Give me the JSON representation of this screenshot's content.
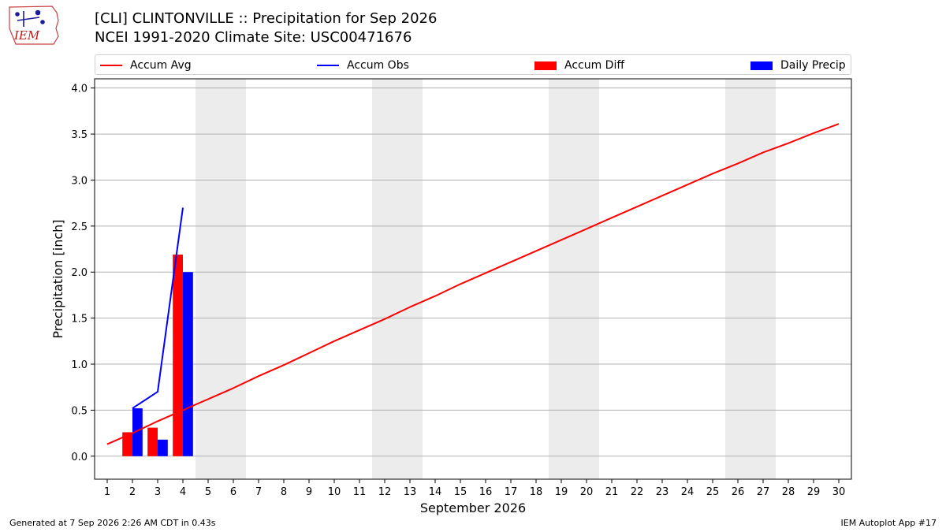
{
  "header": {
    "logo_text": "IEM",
    "title_line1": "[CLI] CLINTONVILLE :: Precipitation for Sep 2026",
    "title_line2": "NCEI 1991-2020 Climate Site: USC00471676"
  },
  "legend": {
    "items": [
      {
        "label": "Accum Avg",
        "kind": "line",
        "color": "#ff0000"
      },
      {
        "label": "Accum Obs",
        "kind": "line",
        "color": "#0000ff"
      },
      {
        "label": "Accum Diff",
        "kind": "patch",
        "color": "#ff0000"
      },
      {
        "label": "Daily Precip",
        "kind": "patch",
        "color": "#0000ff"
      }
    ]
  },
  "chart_data": {
    "type": "bar",
    "xlabel": "September 2026",
    "ylabel": "Precipitation [inch]",
    "xlim": [
      0.5,
      30.5
    ],
    "ylim": [
      -0.25,
      4.1
    ],
    "grid": "horizontal",
    "legend_position": "top",
    "x_ticks": [
      1,
      2,
      3,
      4,
      5,
      6,
      7,
      8,
      9,
      10,
      11,
      12,
      13,
      14,
      15,
      16,
      17,
      18,
      19,
      20,
      21,
      22,
      23,
      24,
      25,
      26,
      27,
      28,
      29,
      30
    ],
    "y_ticks": [
      0.0,
      0.5,
      1.0,
      1.5,
      2.0,
      2.5,
      3.0,
      3.5,
      4.0
    ],
    "weekend_shading": [
      [
        5,
        6
      ],
      [
        12,
        13
      ],
      [
        19,
        20
      ],
      [
        26,
        27
      ]
    ],
    "accum_avg": {
      "name": "Accum Avg",
      "color": "#ff0000",
      "x": [
        1,
        2,
        3,
        4,
        5,
        6,
        7,
        8,
        9,
        10,
        11,
        12,
        13,
        14,
        15,
        16,
        17,
        18,
        19,
        20,
        21,
        22,
        23,
        24,
        25,
        26,
        27,
        28,
        29,
        30
      ],
      "values": [
        0.13,
        0.25,
        0.38,
        0.5,
        0.62,
        0.74,
        0.87,
        0.99,
        1.12,
        1.25,
        1.37,
        1.49,
        1.62,
        1.74,
        1.87,
        1.99,
        2.11,
        2.23,
        2.35,
        2.47,
        2.59,
        2.71,
        2.83,
        2.95,
        3.07,
        3.18,
        3.3,
        3.4,
        3.51,
        3.61
      ]
    },
    "accum_obs": {
      "name": "Accum Obs",
      "color": "#0000ff",
      "x": [
        2,
        3,
        4
      ],
      "values": [
        0.52,
        0.7,
        2.7
      ]
    },
    "accum_diff": {
      "name": "Accum Diff",
      "color": "#ff0000",
      "x": [
        2,
        3,
        4
      ],
      "values": [
        0.26,
        0.31,
        2.19
      ]
    },
    "daily_precip": {
      "name": "Daily Precip",
      "color": "#0000ff",
      "x": [
        2,
        3,
        4
      ],
      "values": [
        0.52,
        0.18,
        2.0
      ]
    }
  },
  "footer": {
    "generated": "Generated at 7 Sep 2026 2:26 AM CDT in 0.43s",
    "app": "IEM Autoplot App #17"
  }
}
